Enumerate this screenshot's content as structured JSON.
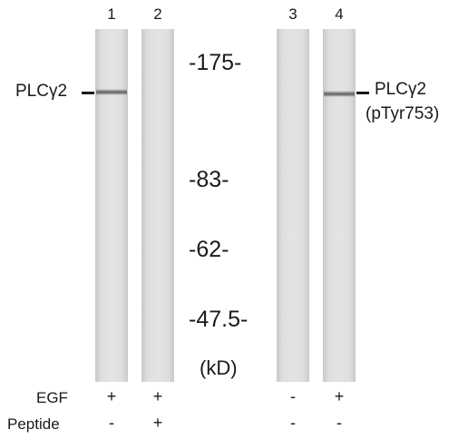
{
  "lanes": [
    {
      "number": "1",
      "egf": "+",
      "peptide": "-"
    },
    {
      "number": "2",
      "egf": "+",
      "peptide": "+"
    },
    {
      "number": "3",
      "egf": "-",
      "peptide": "-"
    },
    {
      "number": "4",
      "egf": "+",
      "peptide": "-"
    }
  ],
  "markers": {
    "m175": "-175-",
    "m83": "-83-",
    "m62": "-62-",
    "m47": "-47.5-",
    "unit": "(kD)"
  },
  "left_label": "PLCγ2",
  "right_label_line1": "PLCγ2",
  "right_label_line2": "(pTyr753)",
  "row_labels": {
    "egf": "EGF",
    "peptide": "Peptide"
  }
}
